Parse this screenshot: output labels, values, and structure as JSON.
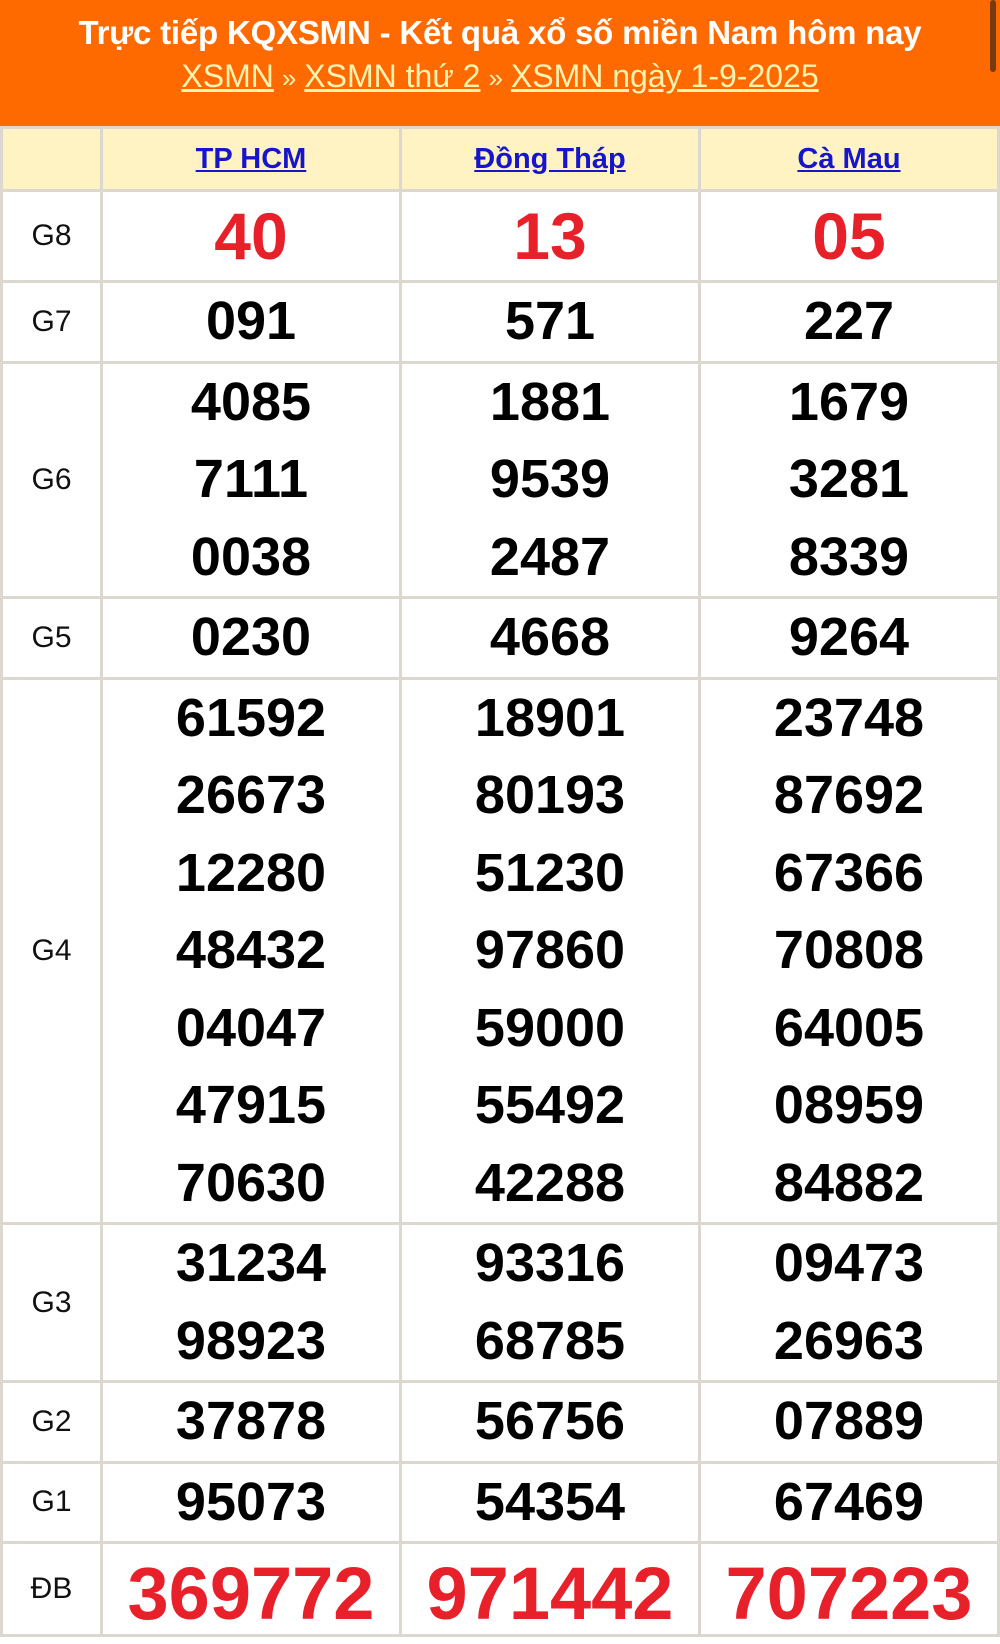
{
  "header": {
    "title": "Trực tiếp KQXSMN - Kết quả xổ số miền Nam hôm nay",
    "breadcrumbs": [
      "XSMN",
      "XSMN thứ 2",
      "XSMN ngày 1-9-2025"
    ],
    "separator": "»"
  },
  "colors": {
    "header_bg": "#ff6a00",
    "table_head_bg": "#fff3c4",
    "highlight": "#e8202a",
    "link": "#1515cc"
  },
  "provinces": [
    "TP HCM",
    "Đồng Tháp",
    "Cà Mau"
  ],
  "prizes": [
    {
      "label": "G8",
      "values": [
        [
          "40"
        ],
        [
          "13"
        ],
        [
          "05"
        ]
      ]
    },
    {
      "label": "G7",
      "values": [
        [
          "091"
        ],
        [
          "571"
        ],
        [
          "227"
        ]
      ]
    },
    {
      "label": "G6",
      "values": [
        [
          "4085",
          "7111",
          "0038"
        ],
        [
          "1881",
          "9539",
          "2487"
        ],
        [
          "1679",
          "3281",
          "8339"
        ]
      ]
    },
    {
      "label": "G5",
      "values": [
        [
          "0230"
        ],
        [
          "4668"
        ],
        [
          "9264"
        ]
      ]
    },
    {
      "label": "G4",
      "values": [
        [
          "61592",
          "26673",
          "12280",
          "48432",
          "04047",
          "47915",
          "70630"
        ],
        [
          "18901",
          "80193",
          "51230",
          "97860",
          "59000",
          "55492",
          "42288"
        ],
        [
          "23748",
          "87692",
          "67366",
          "70808",
          "64005",
          "08959",
          "84882"
        ]
      ]
    },
    {
      "label": "G3",
      "values": [
        [
          "31234",
          "98923"
        ],
        [
          "93316",
          "68785"
        ],
        [
          "09473",
          "26963"
        ]
      ]
    },
    {
      "label": "G2",
      "values": [
        [
          "37878"
        ],
        [
          "56756"
        ],
        [
          "07889"
        ]
      ]
    },
    {
      "label": "G1",
      "values": [
        [
          "95073"
        ],
        [
          "54354"
        ],
        [
          "67469"
        ]
      ]
    },
    {
      "label": "ĐB",
      "values": [
        [
          "369772"
        ],
        [
          "971442"
        ],
        [
          "707223"
        ]
      ]
    }
  ]
}
